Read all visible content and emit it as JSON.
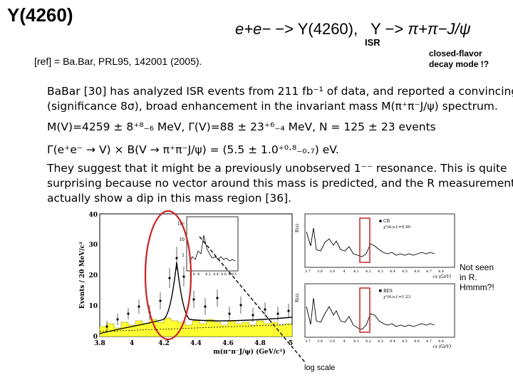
{
  "title": "Y(4260)",
  "reaction": {
    "lhs": "e+e−",
    "arrow1": "−>",
    "mid": "Y(4260)",
    "sep": ",",
    "y": "Y",
    "arrow2": "−>",
    "rhs": "π+π−J/ψ",
    "subscript": "ISR"
  },
  "reference": "[ref]  = Ba.Bar, PRL95, 142001 (2005).",
  "decay_note": [
    "closed-flavor",
    "decay mode !?"
  ],
  "body_text": {
    "line1": "BaBar [30] has analyzed ISR events from 211 fb⁻¹ of data, and reported a convincing",
    "line2": "(significance 8σ), broad enhancement in the invariant mass M(π⁺π⁻J/ψ) spectrum.",
    "line3": "M(V)=4259 ± 8⁺⁸₋₆ MeV, Γ(V)=88 ± 23⁺⁶₋₄ MeV, N = 125 ± 23 events",
    "line4": "Γ(e⁺e⁻ → V) × B(V → π⁺π⁻J/ψ) = (5.5 ± 1.0⁺⁰·⁸₋₀.₇) eV.",
    "line5": "They suggest that it might be a previously unobserved 1⁻⁻ resonance.  This is quite",
    "line6": "surprising because no vector around this mass is predicted, and the R measurements",
    "line7": "actually show a dip in this mass region [36]."
  },
  "main_plot": {
    "ylabel": "Events / 20 MeV/c²",
    "xlabel": "m(π⁺π⁻J/ψ) (GeV/c²)",
    "xticks": [
      "3.8",
      "4",
      "4.2",
      "4.4",
      "4.6",
      "4.8",
      "5"
    ],
    "yticks": [
      "0",
      "10",
      "20",
      "30",
      "40"
    ],
    "inset_yticks": [
      "10²",
      "10",
      "1"
    ],
    "inset_xticks": [
      "3.8",
      "4",
      "4.2",
      "4.4",
      "4.6",
      "4.8",
      "5"
    ]
  },
  "right_plots": {
    "top": {
      "ylabel": "R(s)",
      "legend": "CB",
      "chi": "χ²/d.o.f.=0.90",
      "xticks": [
        "3.7",
        "3.8",
        "3.9",
        "4",
        "4.1",
        "4.2",
        "4.3",
        "4.4",
        "4.5",
        "4.6",
        "4.7",
        "4.8"
      ],
      "xlabel": "√s (GeV)"
    },
    "bottom": {
      "ylabel": "R(s)",
      "legend": "BES",
      "chi": "χ²/d.o.f.=1.23",
      "xticks": [
        "3.7",
        "3.8",
        "3.9",
        "4",
        "4.1",
        "4.2",
        "4.3",
        "4.4",
        "4.5",
        "4.6",
        "4.7",
        "4.8"
      ],
      "xlabel": "√s (GeV)"
    }
  },
  "annotations": {
    "not_seen": [
      "Not seen",
      "in R.",
      "Hmmm?!"
    ],
    "log_scale": "log scale"
  },
  "colors": {
    "highlight": "#cc2222",
    "histogram_fill": "#ffff33",
    "curve": "#000000"
  }
}
